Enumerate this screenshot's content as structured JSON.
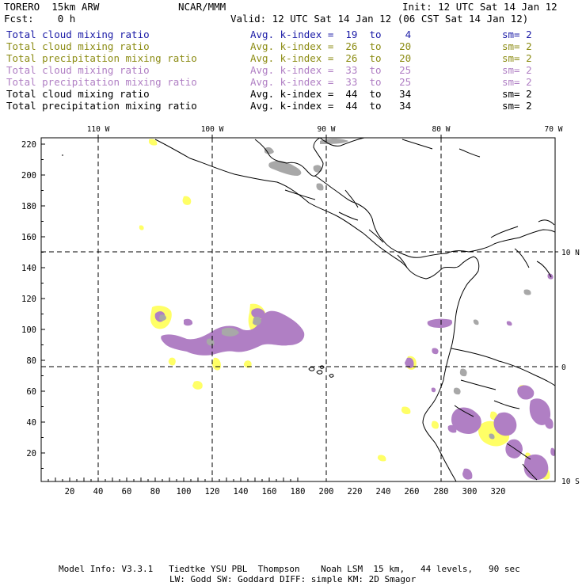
{
  "header": {
    "model": "TORERO  15km ARW",
    "org": "NCAR/MMM",
    "init": "Init: 12 UTC Sat 14 Jan 12",
    "fcst": "Fcst:    0 h",
    "valid": "Valid: 12 UTC Sat 14 Jan 12 (06 CST Sat 14 Jan 12)"
  },
  "legend": [
    {
      "field": "Total cloud mixing ratio",
      "kindex": "Avg. k-index =  19  to    4",
      "sm": "sm= 2",
      "color": "#1a1aa6"
    },
    {
      "field": "Total cloud mixing ratio",
      "kindex": "Avg. k-index =  26  to   20",
      "sm": "sm= 2",
      "color": "#8c8c14"
    },
    {
      "field": "Total precipitation mixing ratio",
      "kindex": "Avg. k-index =  26  to   20",
      "sm": "sm= 2",
      "color": "#8c8c14"
    },
    {
      "field": "Total cloud mixing ratio",
      "kindex": "Avg. k-index =  33  to   25",
      "sm": "sm= 2",
      "color": "#b07fc4"
    },
    {
      "field": "Total precipitation mixing ratio",
      "kindex": "Avg. k-index =  33  to   25",
      "sm": "sm= 2",
      "color": "#b07fc4"
    },
    {
      "field": "Total cloud mixing ratio",
      "kindex": "Avg. k-index =  44  to   34",
      "sm": "sm= 2",
      "color": "#000000"
    },
    {
      "field": "Total precipitation mixing ratio",
      "kindex": "Avg. k-index =  44  to   34",
      "sm": "sm= 2",
      "color": "#000000"
    }
  ],
  "map": {
    "x_ticks": [
      "20",
      "40",
      "60",
      "80",
      "100",
      "120",
      "140",
      "160",
      "180",
      "200",
      "220",
      "240",
      "260",
      "280",
      "300",
      "320"
    ],
    "y_ticks": [
      "20",
      "40",
      "60",
      "80",
      "100",
      "120",
      "140",
      "160",
      "180",
      "200",
      "220"
    ],
    "lon_labels": [
      "110 W",
      "100 W",
      "90 W",
      "80 W",
      "70 W"
    ],
    "lat_labels": [
      "10 N",
      "0",
      "10 S"
    ],
    "colors": {
      "yellow": "#ffff66",
      "purple": "#b07fc4",
      "gray": "#a8a8a8",
      "coast": "#000000",
      "grid": "#000000"
    }
  },
  "footer": {
    "line1": "Model Info: V3.3.1   Tiedtke YSU PBL  Thompson    Noah LSM  15 km,   44 levels,   90 sec",
    "line2": "LW: Godd SW: Goddard DIFF: simple KM: 2D Smagor"
  }
}
